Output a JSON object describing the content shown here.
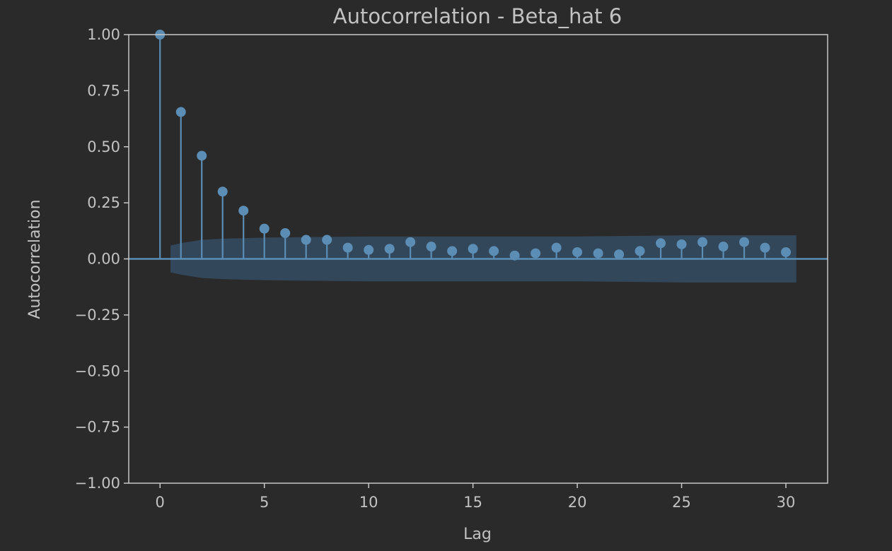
{
  "chart_data": {
    "type": "stem",
    "title": "Autocorrelation - Beta_hat 6",
    "xlabel": "Lag",
    "ylabel": "Autocorrelation",
    "xlim": [
      -1.5,
      32
    ],
    "ylim": [
      -1.0,
      1.0
    ],
    "xticks": [
      0,
      5,
      10,
      15,
      20,
      25,
      30
    ],
    "xtick_labels": [
      "0",
      "5",
      "10",
      "15",
      "20",
      "25",
      "30"
    ],
    "yticks": [
      1.0,
      0.75,
      0.5,
      0.25,
      0.0,
      -0.25,
      -0.5,
      -0.75,
      -1.0
    ],
    "ytick_labels": [
      "1.00",
      "0.75",
      "0.50",
      "0.25",
      "0.00",
      "−0.25",
      "−0.50",
      "−0.75",
      "−1.00"
    ],
    "lags": [
      0,
      1,
      2,
      3,
      4,
      5,
      6,
      7,
      8,
      9,
      10,
      11,
      12,
      13,
      14,
      15,
      16,
      17,
      18,
      19,
      20,
      21,
      22,
      23,
      24,
      25,
      26,
      27,
      28,
      29,
      30
    ],
    "values": [
      1.0,
      0.655,
      0.46,
      0.3,
      0.215,
      0.135,
      0.115,
      0.085,
      0.085,
      0.05,
      0.04,
      0.045,
      0.075,
      0.055,
      0.035,
      0.045,
      0.035,
      0.015,
      0.025,
      0.05,
      0.03,
      0.025,
      0.02,
      0.035,
      0.07,
      0.065,
      0.075,
      0.055,
      0.075,
      0.05,
      0.03
    ],
    "confidence_band": {
      "lags": [
        0.5,
        1,
        2,
        3,
        5,
        10,
        15,
        20,
        25,
        30,
        30.5
      ],
      "upper": [
        0.06,
        0.07,
        0.085,
        0.09,
        0.095,
        0.1,
        0.1,
        0.1,
        0.105,
        0.105,
        0.105
      ]
    },
    "grid": false,
    "colors": {
      "background": "#2a2a2a",
      "series": "#5b8db5",
      "band": "#33475a",
      "axes": "#c8c8c8",
      "text": "#c2c2c2"
    }
  }
}
